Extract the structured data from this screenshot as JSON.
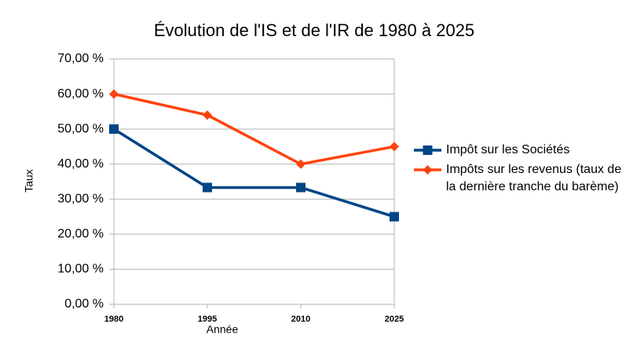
{
  "chart_data": {
    "type": "line",
    "title": "Évolution de l'IS et de l'IR de 1980 à 2025",
    "x_label": "Année",
    "y_label": "Taux",
    "x": [
      1980,
      1995,
      2010,
      2025
    ],
    "xlim": [
      1980,
      2025
    ],
    "xticks": [
      1980,
      1995,
      2010,
      2025
    ],
    "ylim": [
      0,
      70
    ],
    "yticks": [
      {
        "value": 0,
        "label": "0,00 %"
      },
      {
        "value": 10,
        "label": "10,00 %"
      },
      {
        "value": 20,
        "label": "20,00 %"
      },
      {
        "value": 30,
        "label": "30,00 %"
      },
      {
        "value": 40,
        "label": "40,00 %"
      },
      {
        "value": 50,
        "label": "50,00 %"
      },
      {
        "value": 60,
        "label": "60,00 %"
      },
      {
        "value": 70,
        "label": "70,00 %"
      }
    ],
    "grid": true,
    "series": [
      {
        "name": "Impôt sur les Sociétés",
        "color": "#004586",
        "marker": "square",
        "values": [
          50,
          33.33,
          33.33,
          25
        ]
      },
      {
        "name": "Impôts sur les revenus (taux de la dernière tranche du barème)",
        "color": "#ff420e",
        "marker": "diamond",
        "values": [
          60,
          54,
          40,
          45
        ]
      }
    ]
  }
}
